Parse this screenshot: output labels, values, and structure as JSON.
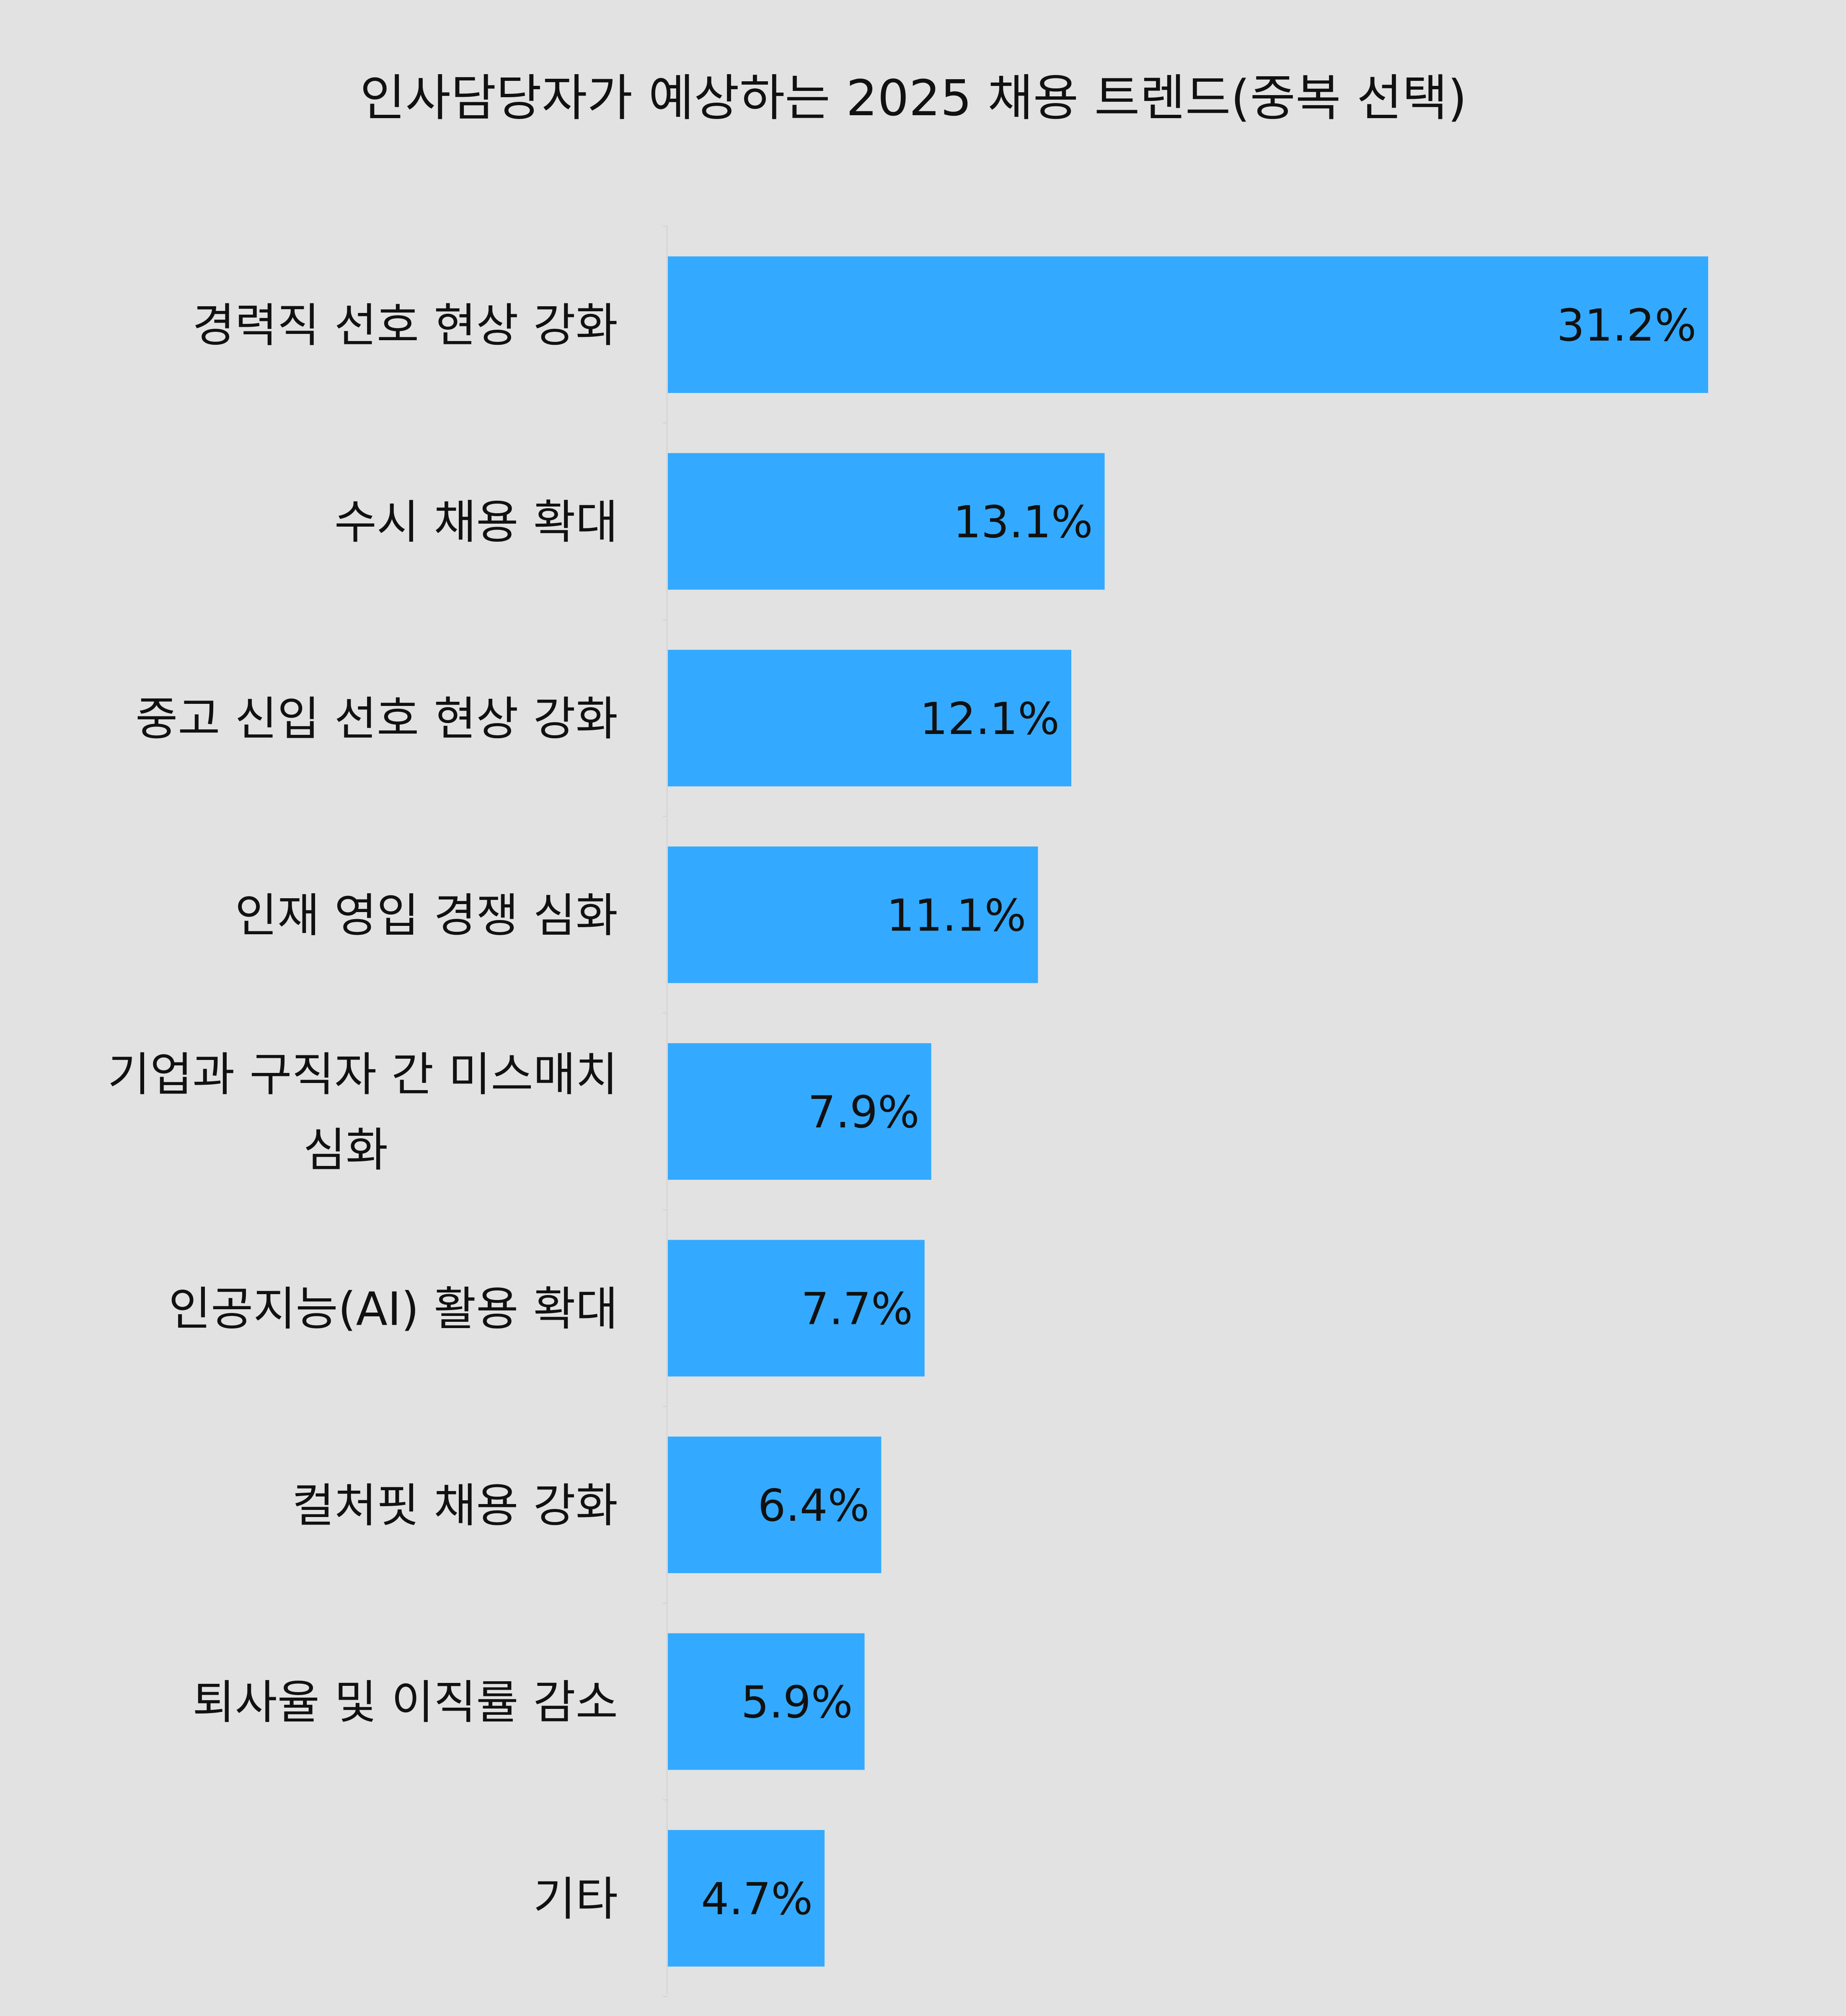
{
  "chart_data": {
    "type": "bar",
    "orientation": "horizontal",
    "title": "인사담당자가 예상하는 2025 채용 트렌드(중복 선택)",
    "categories": [
      [
        "경력직 선호 현상 강화"
      ],
      [
        "수시 채용 확대"
      ],
      [
        "중고 신입 선호 현상 강화"
      ],
      [
        "인재 영입 경쟁 심화"
      ],
      [
        "기업과 구직자 간 미스매치",
        "심화"
      ],
      [
        "인공지능(AI) 활용 확대"
      ],
      [
        "컬처핏 채용 강화"
      ],
      [
        "퇴사율 및 이직률 감소"
      ],
      [
        "기타"
      ]
    ],
    "values": [
      31.2,
      13.1,
      12.1,
      11.1,
      7.9,
      7.7,
      6.4,
      5.9,
      4.7
    ],
    "value_labels": [
      "31.2%",
      "13.1%",
      "12.1%",
      "11.1%",
      "7.9%",
      "7.7%",
      "6.4%",
      "5.9%",
      "4.7%"
    ],
    "xlim": [
      0,
      33.2
    ],
    "xlabel": "",
    "ylabel": "",
    "grid": false,
    "legend": "none",
    "bar_color": "#33aaff",
    "background_color": "#e2e2e2"
  }
}
